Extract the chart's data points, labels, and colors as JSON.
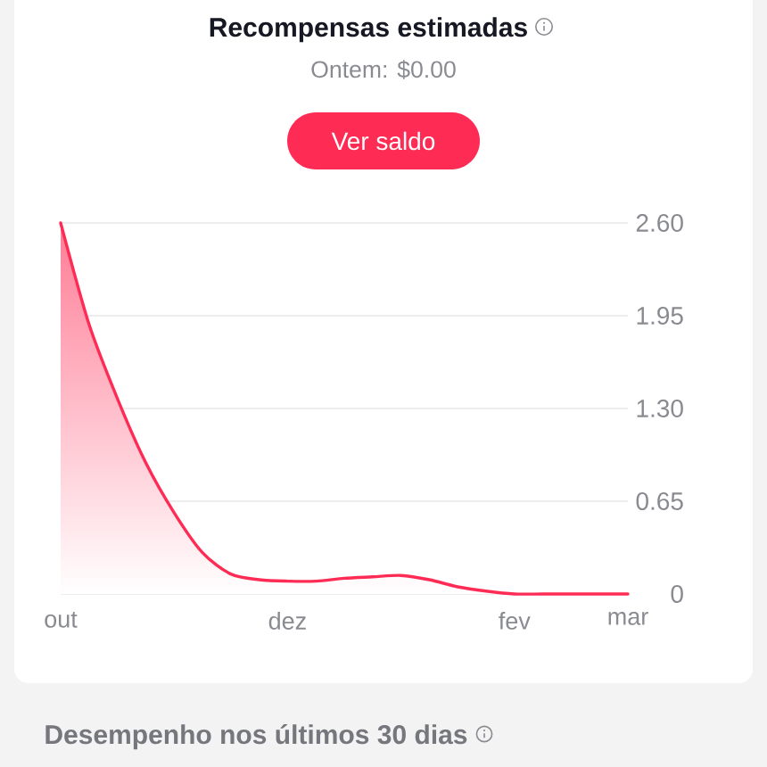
{
  "chart_data": {
    "type": "area",
    "title": "Recompensas estimadas",
    "subtitle": "Ontem: $0.00",
    "annotations": [
      "Ver saldo",
      "Desempenho nos últimos 30 dias"
    ],
    "categories": [
      "out",
      null,
      null,
      null,
      null,
      null,
      null,
      null,
      "dez",
      null,
      null,
      null,
      null,
      null,
      null,
      null,
      "fev",
      null,
      null,
      null,
      "mar"
    ],
    "series": [
      {
        "color": "#fe2c55",
        "values": [
          2.6,
          1.89,
          1.37,
          0.92,
          0.57,
          0.29,
          0.14,
          0.1,
          0.09,
          0.09,
          0.11,
          0.12,
          0.13,
          0.1,
          0.05,
          0.02,
          0,
          0,
          0,
          0,
          0
        ]
      }
    ],
    "ylim": [
      0,
      2.6
    ],
    "yticks": [
      0,
      0.65,
      {
        "value": 1.3,
        "label": "1.30"
      },
      1.95,
      {
        "value": 2.6,
        "label": "2.60"
      }
    ],
    "grid": "y"
  }
}
